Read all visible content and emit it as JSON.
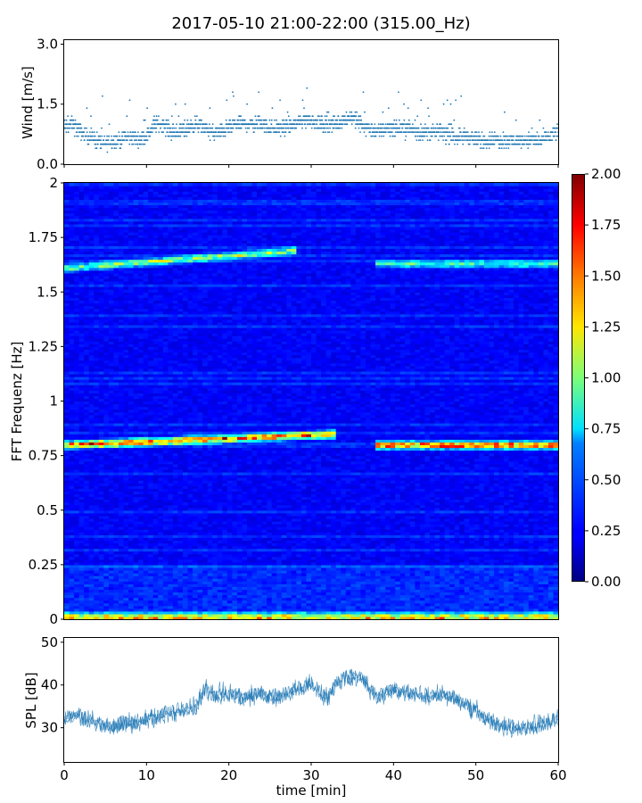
{
  "figure": {
    "title": "2017-05-10 21:00-22:00 (315.00_Hz)"
  },
  "chart_data": [
    {
      "type": "scatter",
      "panel": "wind",
      "ylabel": "Wind [m/s]",
      "xlim": [
        0,
        60
      ],
      "ylim": [
        0,
        3.1
      ],
      "yticks": [
        0.0,
        1.5,
        3.0
      ],
      "ytick_labels": [
        "0.0",
        "1.5",
        "3.0"
      ],
      "xticks": [
        0,
        10,
        20,
        30,
        40,
        50,
        60
      ],
      "marker_color": "#1f77b4",
      "series": [
        {
          "x": [
            0,
            1,
            2,
            3,
            4,
            5,
            6,
            7,
            8,
            9,
            10,
            11,
            12,
            13,
            14,
            15,
            16,
            17,
            18,
            19,
            20,
            21,
            22,
            23,
            24,
            25,
            26,
            27,
            28,
            29,
            30,
            31,
            32,
            33,
            34,
            35,
            36,
            37,
            38,
            39,
            40,
            41,
            42,
            43,
            44,
            45,
            46,
            47,
            48,
            49,
            50,
            51,
            52,
            53,
            54,
            55,
            56,
            57,
            58,
            59,
            60
          ],
          "y": [
            0.9,
            1.0,
            0.8,
            0.7,
            0.6,
            0.5,
            0.6,
            0.6,
            0.7,
            0.6,
            0.7,
            1.0,
            1.0,
            0.8,
            0.8,
            0.9,
            1.0,
            0.9,
            0.8,
            0.8,
            0.9,
            1.0,
            1.0,
            1.0,
            1.0,
            0.9,
            0.9,
            0.9,
            1.0,
            1.1,
            1.1,
            1.0,
            1.0,
            1.0,
            1.1,
            1.2,
            1.0,
            0.9,
            0.8,
            0.9,
            0.9,
            0.9,
            0.9,
            0.8,
            0.8,
            0.8,
            0.8,
            0.7,
            0.7,
            0.7,
            0.6,
            0.6,
            0.6,
            0.6,
            0.6,
            0.6,
            0.6,
            0.6,
            0.6,
            0.7,
            0.8
          ]
        }
      ]
    },
    {
      "type": "heatmap",
      "panel": "spectrogram",
      "ylabel": "FFT Frequenz [Hz]",
      "xlim": [
        0,
        60
      ],
      "ylim": [
        0,
        2
      ],
      "yticks": [
        0,
        0.25,
        0.5,
        0.75,
        1,
        1.25,
        1.5,
        1.75,
        2
      ],
      "ytick_labels": [
        "0",
        "0.25",
        "0.5",
        "0.75",
        "1",
        "1.25",
        "1.5",
        "1.75",
        "2"
      ],
      "colormap": "jet",
      "vmin": 0,
      "vmax": 2,
      "colorbar_ticks": [
        "0.00",
        "0.25",
        "0.50",
        "0.75",
        "1.00",
        "1.25",
        "1.50",
        "1.75",
        "2.00"
      ],
      "features": [
        {
          "freq_hz": 0.81,
          "t_start": 0,
          "t_end": 33,
          "level": 1.6
        },
        {
          "freq_hz": 0.8,
          "t_start": 38,
          "t_end": 60,
          "level": 1.6
        },
        {
          "freq_hz": 1.63,
          "t_start": 0,
          "t_end": 28,
          "level": 0.9
        },
        {
          "freq_hz": 1.63,
          "t_start": 38,
          "t_end": 60,
          "level": 0.7
        },
        {
          "freq_hz": 0.01,
          "t_start": 0,
          "t_end": 60,
          "level": 1.2
        }
      ]
    },
    {
      "type": "line",
      "panel": "spl",
      "ylabel": "SPL [dB]",
      "xlabel": "time [min]",
      "xlim": [
        0,
        60
      ],
      "ylim": [
        22,
        51
      ],
      "yticks": [
        30,
        40,
        50
      ],
      "ytick_labels": [
        "30",
        "40",
        "50"
      ],
      "xticks": [
        0,
        10,
        20,
        30,
        40,
        50,
        60
      ],
      "xtick_labels": [
        "0",
        "10",
        "20",
        "30",
        "40",
        "50",
        "60"
      ],
      "line_color": "#1f77b4",
      "series": [
        {
          "x": [
            0,
            2,
            4,
            6,
            8,
            10,
            12,
            14,
            16,
            17,
            18,
            20,
            22,
            24,
            26,
            28,
            30,
            32,
            33,
            34,
            36,
            38,
            40,
            42,
            44,
            46,
            48,
            50,
            52,
            54,
            56,
            58,
            60
          ],
          "y": [
            32,
            33,
            31,
            30,
            31,
            32,
            33,
            34,
            35,
            39,
            38,
            38,
            37,
            38,
            37,
            39,
            40,
            37,
            40,
            42,
            42,
            37,
            39,
            38,
            37,
            38,
            36,
            34,
            31,
            30,
            30,
            31,
            32
          ]
        }
      ]
    }
  ]
}
